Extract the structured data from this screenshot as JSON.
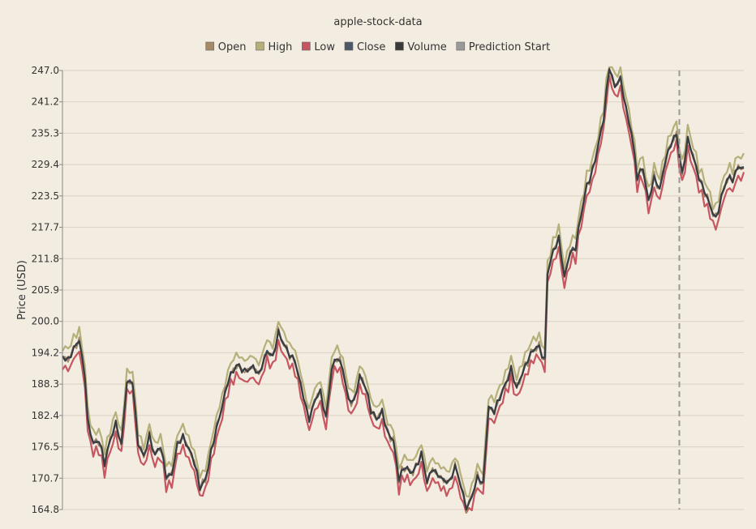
{
  "chart_data": {
    "type": "line",
    "title": "apple-stock-data",
    "xlabel": "",
    "ylabel": "Price (USD)",
    "ylim": [
      164.8,
      247.0
    ],
    "yticks": [
      "247.0",
      "241.2",
      "235.3",
      "229.4",
      "223.5",
      "217.7",
      "211.8",
      "205.9",
      "200.0",
      "194.2",
      "188.3",
      "182.4",
      "176.5",
      "170.7",
      "164.8"
    ],
    "grid": true,
    "legend_position": "top-center",
    "prediction_start_index": 220,
    "legend": [
      {
        "name": "Open",
        "color": "#a48a67"
      },
      {
        "name": "High",
        "color": "#b5b07a"
      },
      {
        "name": "Low",
        "color": "#c65660"
      },
      {
        "name": "Close",
        "color": "#4d5866"
      },
      {
        "name": "Volume",
        "color": "#3a3a3a"
      },
      {
        "name": "Prediction Start",
        "color": "#999999"
      }
    ],
    "close_anchors": [
      [
        0,
        193.5
      ],
      [
        2,
        192.0
      ],
      [
        4,
        194.0
      ],
      [
        6,
        196.0
      ],
      [
        8,
        190.0
      ],
      [
        9,
        182.0
      ],
      [
        11,
        178.0
      ],
      [
        13,
        178.5
      ],
      [
        15,
        173.5
      ],
      [
        17,
        177.0
      ],
      [
        19,
        180.0
      ],
      [
        21,
        176.5
      ],
      [
        23,
        189.0
      ],
      [
        25,
        189.5
      ],
      [
        27,
        178.0
      ],
      [
        29,
        175.0
      ],
      [
        31,
        178.0
      ],
      [
        33,
        174.0
      ],
      [
        35,
        176.0
      ],
      [
        37,
        171.0
      ],
      [
        39,
        172.0
      ],
      [
        41,
        178.0
      ],
      [
        43,
        179.0
      ],
      [
        45,
        176.0
      ],
      [
        47,
        173.0
      ],
      [
        49,
        168.0
      ],
      [
        51,
        170.0
      ],
      [
        53,
        176.0
      ],
      [
        55,
        181.0
      ],
      [
        57,
        185.0
      ],
      [
        59,
        189.0
      ],
      [
        62,
        191.0
      ],
      [
        65,
        190.0
      ],
      [
        68,
        192.0
      ],
      [
        70,
        191.0
      ],
      [
        73,
        195.0
      ],
      [
        75,
        193.0
      ],
      [
        77,
        197.0
      ],
      [
        80,
        194.0
      ],
      [
        83,
        193.0
      ],
      [
        85,
        189.0
      ],
      [
        88,
        182.0
      ],
      [
        90,
        185.0
      ],
      [
        92,
        186.0
      ],
      [
        94,
        181.0
      ],
      [
        96,
        191.0
      ],
      [
        98,
        194.0
      ],
      [
        100,
        192.0
      ],
      [
        102,
        186.0
      ],
      [
        104,
        185.0
      ],
      [
        106,
        189.0
      ],
      [
        108,
        187.0
      ],
      [
        110,
        183.0
      ],
      [
        112,
        182.0
      ],
      [
        114,
        184.0
      ],
      [
        116,
        180.0
      ],
      [
        118,
        178.0
      ],
      [
        120,
        170.0
      ],
      [
        122,
        172.0
      ],
      [
        124,
        171.0
      ],
      [
        126,
        172.5
      ],
      [
        128,
        176.0
      ],
      [
        130,
        171.0
      ],
      [
        132,
        173.0
      ],
      [
        134,
        171.0
      ],
      [
        136,
        169.5
      ],
      [
        138,
        169.0
      ],
      [
        140,
        172.5
      ],
      [
        142,
        170.0
      ],
      [
        144,
        165.5
      ],
      [
        146,
        168.0
      ],
      [
        148,
        171.0
      ],
      [
        150,
        169.0
      ],
      [
        152,
        183.0
      ],
      [
        154,
        182.5
      ],
      [
        156,
        186.0
      ],
      [
        158,
        189.0
      ],
      [
        160,
        192.0
      ],
      [
        162,
        188.0
      ],
      [
        164,
        190.0
      ],
      [
        166,
        192.0
      ],
      [
        168,
        194.0
      ],
      [
        170,
        195.0
      ],
      [
        172,
        193.0
      ],
      [
        173,
        210.0
      ],
      [
        175,
        214.0
      ],
      [
        177,
        216.0
      ],
      [
        179,
        208.0
      ],
      [
        181,
        212.0
      ],
      [
        183,
        213.0
      ],
      [
        185,
        220.0
      ],
      [
        187,
        226.0
      ],
      [
        189,
        229.0
      ],
      [
        191,
        233.5
      ],
      [
        193,
        238.0
      ],
      [
        195,
        247.0
      ],
      [
        197,
        243.0
      ],
      [
        199,
        245.0
      ],
      [
        201,
        240.0
      ],
      [
        203,
        236.0
      ],
      [
        205,
        228.0
      ],
      [
        207,
        229.0
      ],
      [
        209,
        222.0
      ],
      [
        211,
        226.0
      ],
      [
        213,
        224.0
      ],
      [
        215,
        230.0
      ],
      [
        217,
        234.0
      ],
      [
        219,
        236.0
      ],
      [
        221,
        228.0
      ],
      [
        223,
        234.0
      ],
      [
        225,
        230.0
      ],
      [
        227,
        226.0
      ],
      [
        229,
        224.0
      ],
      [
        231,
        222.0
      ],
      [
        233,
        220.0
      ],
      [
        235,
        224.0
      ],
      [
        237,
        227.0
      ],
      [
        239,
        226.0
      ],
      [
        241,
        228.0
      ],
      [
        243,
        228.0
      ]
    ]
  }
}
